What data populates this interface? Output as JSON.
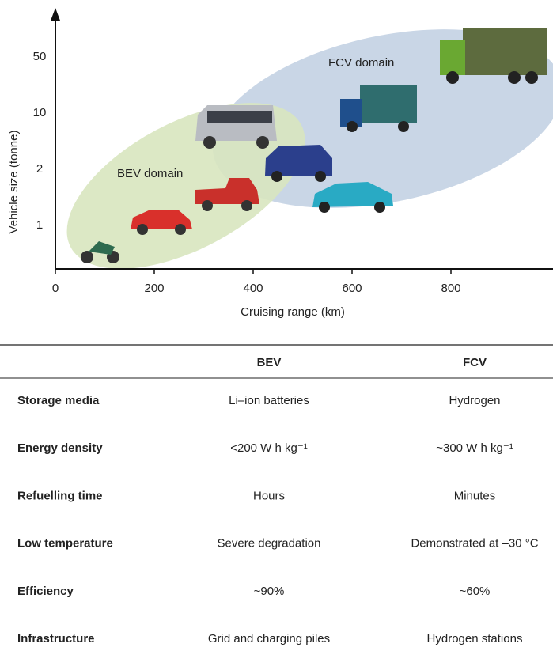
{
  "axes": {
    "y_title": "Vehicle size (tonne)",
    "x_title": "Cruising range (km)",
    "y_ticks": [
      "50",
      "10",
      "2",
      "1"
    ],
    "x_ticks": [
      "0",
      "200",
      "400",
      "600",
      "800"
    ]
  },
  "domains": {
    "bev": "BEV domain",
    "fcv": "FCV domain"
  },
  "table": {
    "header": [
      "BEV",
      "FCV"
    ],
    "rows": [
      [
        "Storage media",
        "Li–ion batteries",
        "Hydrogen"
      ],
      [
        "Energy density",
        "<200 W h kg⁻¹",
        "~300 W h kg⁻¹"
      ],
      [
        "Refuelling time",
        "Hours",
        "Minutes"
      ],
      [
        "Low temperature",
        "Severe degradation",
        "Demonstrated at –30 °C"
      ],
      [
        "Efficiency",
        "~90%",
        "~60%"
      ],
      [
        "Infrastructure",
        "Grid and charging piles",
        "Hydrogen stations"
      ]
    ]
  }
}
